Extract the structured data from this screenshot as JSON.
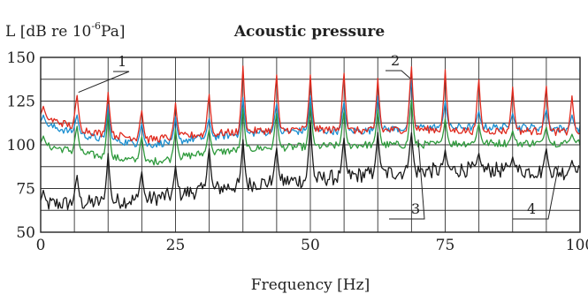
{
  "chart_data": {
    "type": "line",
    "title": "Acoustic pressure",
    "ylabel_prefix": "L [dB re 10",
    "ylabel_exp": "-6",
    "ylabel_suffix": "Pa]",
    "xlabel": "Frequency [Hz]",
    "xlim": [
      0,
      100
    ],
    "ylim": [
      50,
      150
    ],
    "xticks": [
      0,
      25,
      50,
      75,
      100
    ],
    "yticks": [
      50,
      75,
      100,
      125,
      150
    ],
    "grid": true,
    "annotations": [
      {
        "label": "1",
        "x": 7,
        "y": 130,
        "target_series": "1"
      },
      {
        "label": "2",
        "x": 68.5,
        "y": 138,
        "target_series": "2"
      },
      {
        "label": "3",
        "x": 70,
        "y": 103,
        "target_series": "3"
      },
      {
        "label": "4",
        "x": 96,
        "y": 88,
        "target_series": "4"
      }
    ],
    "series": [
      {
        "name": "1",
        "color": "#e02a1e",
        "base": [
          [
            0,
            116
          ],
          [
            10,
            107
          ],
          [
            20,
            103
          ],
          [
            30,
            106
          ],
          [
            40,
            108
          ],
          [
            50,
            109
          ],
          [
            60,
            108
          ],
          [
            70,
            109
          ],
          [
            80,
            108
          ],
          [
            90,
            108
          ],
          [
            100,
            107
          ]
        ],
        "peaks": [
          [
            0.5,
            122
          ],
          [
            6.7,
            130
          ],
          [
            12.5,
            130
          ],
          [
            18.7,
            121
          ],
          [
            25,
            124
          ],
          [
            31.2,
            131
          ],
          [
            37.5,
            145
          ],
          [
            43.7,
            143
          ],
          [
            50,
            140
          ],
          [
            56.2,
            144
          ],
          [
            62.5,
            138
          ],
          [
            68.7,
            148
          ],
          [
            75,
            143
          ],
          [
            81.2,
            140
          ],
          [
            87.5,
            133
          ],
          [
            93.7,
            136
          ],
          [
            98.5,
            128
          ]
        ]
      },
      {
        "name": "2",
        "color": "#1a8fd1",
        "base": [
          [
            0,
            112
          ],
          [
            10,
            104
          ],
          [
            20,
            100
          ],
          [
            30,
            104
          ],
          [
            40,
            107
          ],
          [
            50,
            108
          ],
          [
            60,
            108
          ],
          [
            70,
            110
          ],
          [
            80,
            110
          ],
          [
            90,
            110
          ],
          [
            100,
            109
          ]
        ],
        "peaks": [
          [
            0.5,
            117
          ],
          [
            6.7,
            118
          ],
          [
            12.5,
            123
          ],
          [
            18.7,
            113
          ],
          [
            25,
            116
          ],
          [
            31.2,
            116
          ],
          [
            37.5,
            127
          ],
          [
            43.7,
            125
          ],
          [
            50,
            128
          ],
          [
            56.2,
            126
          ],
          [
            62.5,
            128
          ],
          [
            68.7,
            140
          ],
          [
            75,
            125
          ],
          [
            81.2,
            120
          ],
          [
            87.5,
            118
          ],
          [
            93.7,
            121
          ],
          [
            98.5,
            117
          ]
        ]
      },
      {
        "name": "3",
        "color": "#2e9a3c",
        "base": [
          [
            0,
            100
          ],
          [
            10,
            94
          ],
          [
            20,
            90
          ],
          [
            30,
            95
          ],
          [
            40,
            98
          ],
          [
            50,
            99
          ],
          [
            60,
            100
          ],
          [
            70,
            100
          ],
          [
            80,
            101
          ],
          [
            90,
            101
          ],
          [
            100,
            101
          ]
        ],
        "peaks": [
          [
            0.5,
            105
          ],
          [
            6.7,
            112
          ],
          [
            12.5,
            119
          ],
          [
            18.7,
            106
          ],
          [
            25,
            109
          ],
          [
            31.2,
            110
          ],
          [
            37.5,
            121
          ],
          [
            43.7,
            120
          ],
          [
            50,
            125
          ],
          [
            56.2,
            121
          ],
          [
            62.5,
            120
          ],
          [
            68.7,
            128
          ],
          [
            75,
            115
          ],
          [
            81.2,
            113
          ],
          [
            87.5,
            108
          ],
          [
            93.7,
            111
          ],
          [
            98.5,
            106
          ]
        ]
      },
      {
        "name": "4",
        "color": "#1a1a1a",
        "base": [
          [
            0,
            66
          ],
          [
            10,
            67
          ],
          [
            20,
            69
          ],
          [
            30,
            74
          ],
          [
            40,
            78
          ],
          [
            50,
            80
          ],
          [
            60,
            83
          ],
          [
            70,
            85
          ],
          [
            80,
            86
          ],
          [
            90,
            85
          ],
          [
            100,
            84
          ]
        ],
        "peaks": [
          [
            0.5,
            74
          ],
          [
            6.7,
            84
          ],
          [
            12.5,
            95
          ],
          [
            18.7,
            86
          ],
          [
            25,
            88
          ],
          [
            31.2,
            100
          ],
          [
            37.5,
            103
          ],
          [
            43.7,
            100
          ],
          [
            50,
            114
          ],
          [
            56.2,
            106
          ],
          [
            62.5,
            107
          ],
          [
            68.7,
            109
          ],
          [
            75,
            97
          ],
          [
            81.2,
            96
          ],
          [
            87.5,
            93
          ],
          [
            93.7,
            99
          ],
          [
            98.5,
            91
          ]
        ]
      }
    ]
  }
}
